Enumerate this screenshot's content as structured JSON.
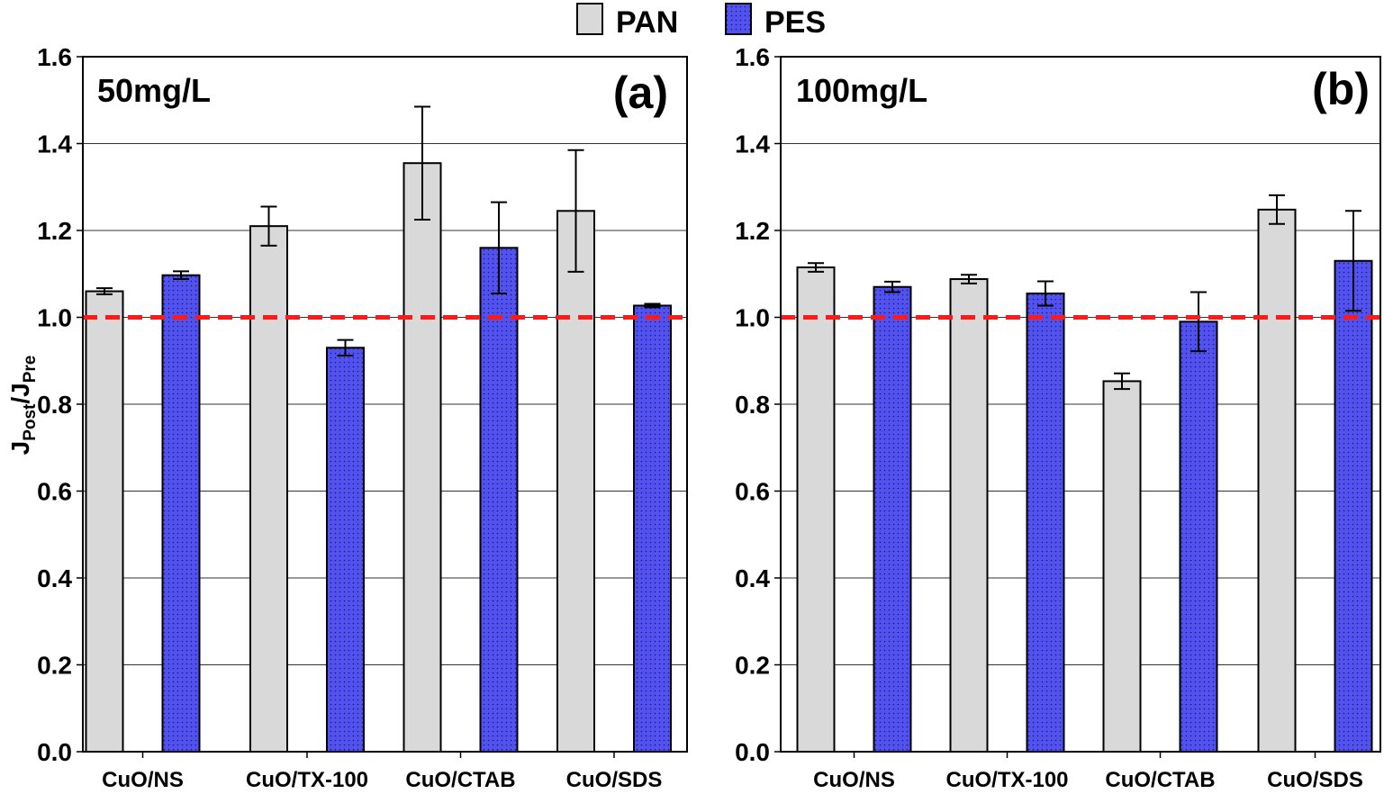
{
  "legend": {
    "position": "top-center",
    "entries": [
      {
        "name": "PAN",
        "color": "#d9d9d9",
        "pattern": "solid"
      },
      {
        "name": "PES",
        "color": "#5252f0",
        "pattern": "dotted"
      }
    ]
  },
  "y_axis": {
    "label_main": "J",
    "label_sub1": "Post",
    "label_slash": "/J",
    "label_sub2": "Pre"
  },
  "reference_line": {
    "value": 1.0,
    "color": "#ff1a1a",
    "style": "dashed"
  },
  "chart_data": [
    {
      "type": "bar",
      "panel_label": "(a)",
      "annotation": "50mg/L",
      "categories": [
        "CuO/NS",
        "CuO/TX-100",
        "CuO/CTAB",
        "CuO/SDS"
      ],
      "ylim": [
        0,
        1.6
      ],
      "yticks": [
        "0.0",
        "0.2",
        "0.4",
        "0.6",
        "0.8",
        "1.0",
        "1.2",
        "1.4",
        "1.6"
      ],
      "grid": true,
      "series": [
        {
          "name": "PAN",
          "values": [
            1.06,
            1.21,
            1.355,
            1.245
          ],
          "errors": [
            0.007,
            0.045,
            0.13,
            0.14
          ]
        },
        {
          "name": "PES",
          "values": [
            1.097,
            0.93,
            1.16,
            1.027
          ],
          "errors": [
            0.009,
            0.018,
            0.105,
            0.004
          ]
        }
      ]
    },
    {
      "type": "bar",
      "panel_label": "(b)",
      "annotation": "100mg/L",
      "categories": [
        "CuO/NS",
        "CuO/TX-100",
        "CuO/CTAB",
        "CuO/SDS"
      ],
      "ylim": [
        0,
        1.6
      ],
      "yticks": [
        "0.0",
        "0.2",
        "0.4",
        "0.6",
        "0.8",
        "1.0",
        "1.2",
        "1.4",
        "1.6"
      ],
      "grid": true,
      "series": [
        {
          "name": "PAN",
          "values": [
            1.115,
            1.088,
            0.853,
            1.248
          ],
          "errors": [
            0.01,
            0.01,
            0.018,
            0.033
          ]
        },
        {
          "name": "PES",
          "values": [
            1.07,
            1.055,
            0.99,
            1.13
          ],
          "errors": [
            0.012,
            0.028,
            0.068,
            0.115
          ]
        }
      ]
    }
  ]
}
